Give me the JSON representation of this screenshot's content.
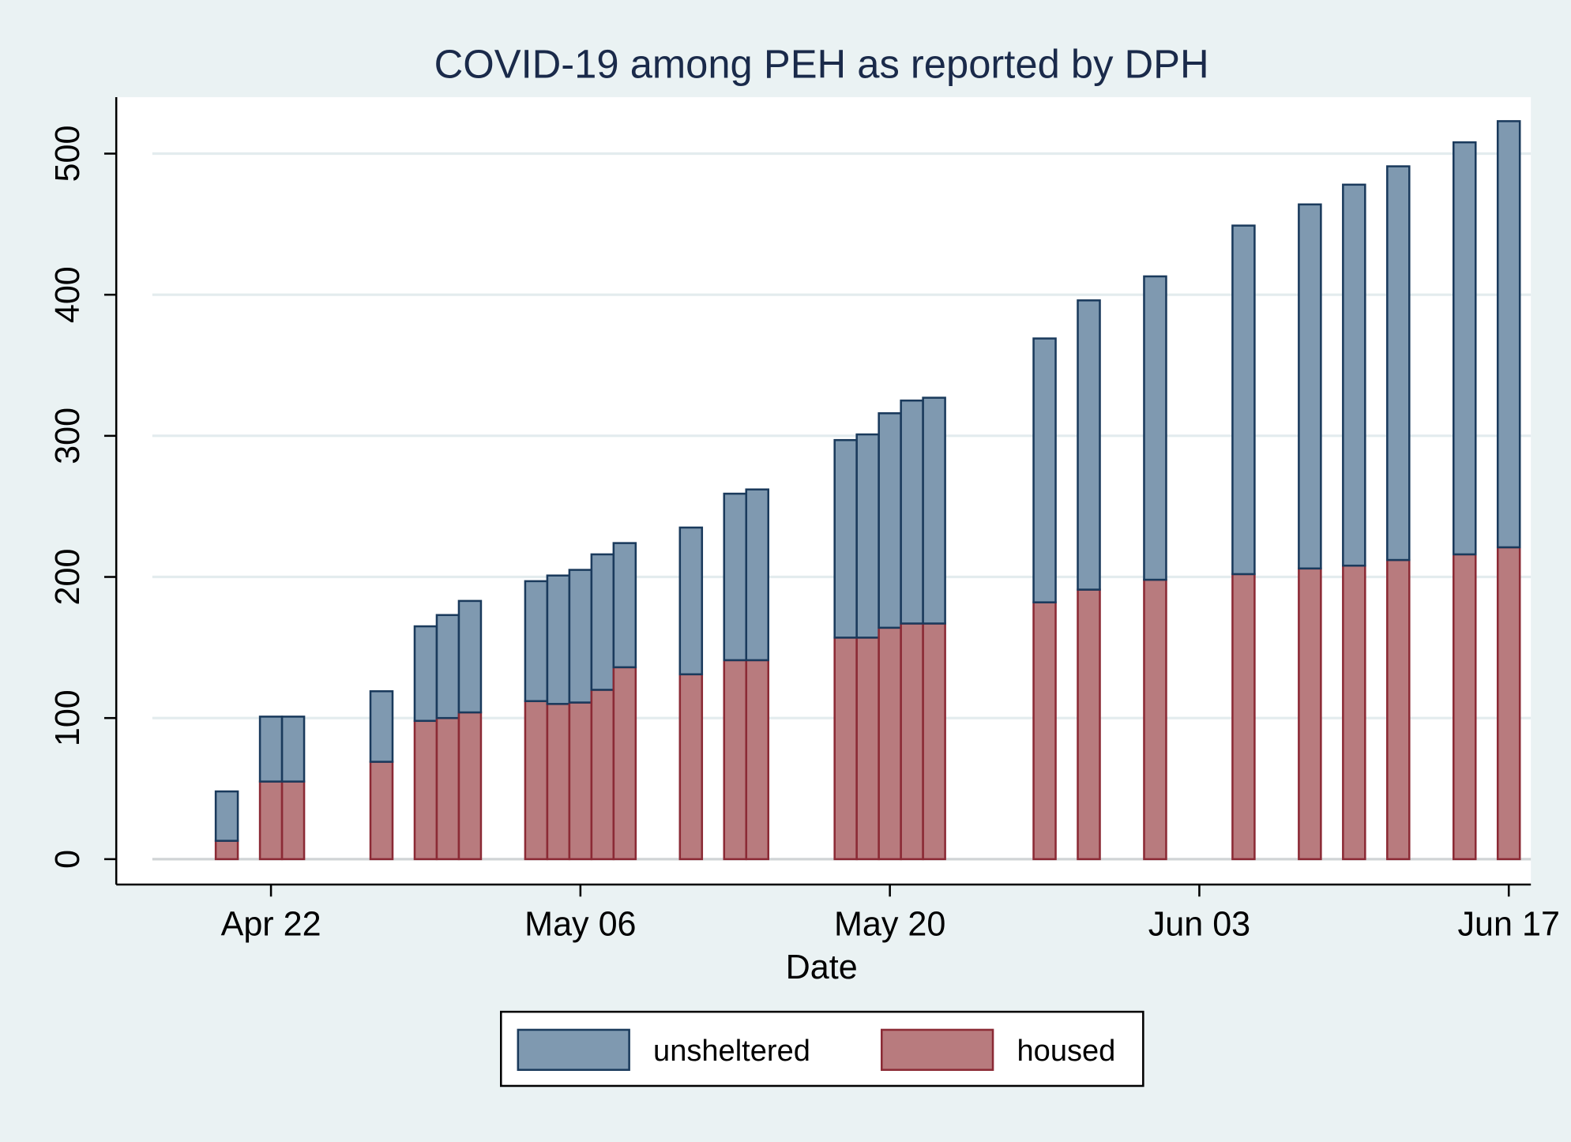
{
  "chart_data": {
    "type": "stacked_bar",
    "title": "COVID-19 among PEH as reported by DPH",
    "x_label": "Date",
    "x": [
      "Apr 20",
      "Apr 22",
      "Apr 23",
      "Apr 27",
      "Apr 29",
      "Apr 30",
      "May 01",
      "May 04",
      "May 05",
      "May 06",
      "May 07",
      "May 08",
      "May 11",
      "May 13",
      "May 14",
      "May 18",
      "May 19",
      "May 20",
      "May 21",
      "May 22",
      "May 27",
      "May 29",
      "Jun 01",
      "Jun 05",
      "Jun 08",
      "Jun 10",
      "Jun 12",
      "Jun 15",
      "Jun 17"
    ],
    "series": [
      {
        "name": "unsheltered",
        "color": "#7f99b0",
        "edge": "#1a3a5c",
        "values": [
          35,
          46,
          46,
          50,
          67,
          73,
          79,
          85,
          91,
          94,
          96,
          88,
          104,
          118,
          121,
          140,
          144,
          152,
          158,
          160,
          187,
          205,
          215,
          247,
          258,
          270,
          279,
          292,
          302
        ]
      },
      {
        "name": "housed",
        "color": "#b87b7e",
        "edge": "#8b2a35",
        "values": [
          13,
          55,
          55,
          69,
          98,
          100,
          104,
          112,
          110,
          111,
          120,
          136,
          131,
          141,
          141,
          157,
          157,
          164,
          167,
          167,
          182,
          191,
          198,
          202,
          206,
          208,
          212,
          216,
          221
        ]
      }
    ],
    "xlim": [
      "Apr 15",
      "Jun 18"
    ],
    "xticks": [
      "Apr 22",
      "May 06",
      "May 20",
      "Jun 03",
      "Jun 17"
    ],
    "ylim": [
      -18,
      540
    ],
    "yticks": [
      0,
      100,
      200,
      300,
      400,
      500
    ],
    "grid": true,
    "legend": "bottom"
  }
}
